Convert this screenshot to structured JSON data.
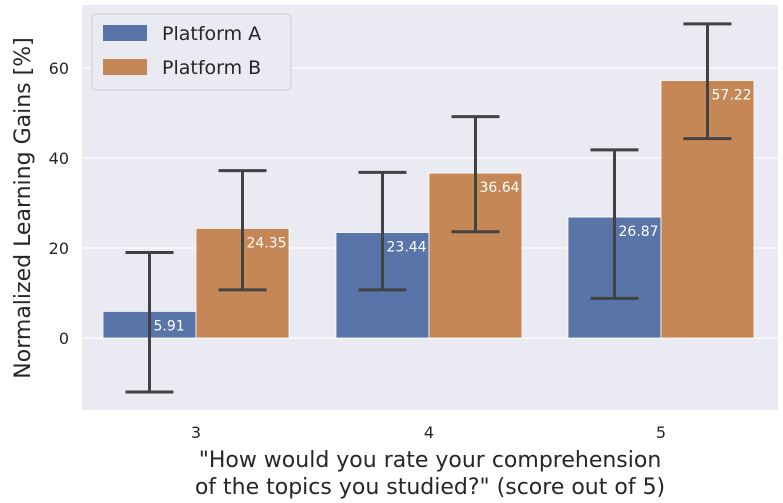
{
  "chart_data": {
    "type": "bar",
    "title": "",
    "ylabel": "Normalized Learning Gains [%]",
    "xlabel_lines": [
      "\"How would you rate your comprehension",
      "of the topics you studied?\" (score out of 5)"
    ],
    "categories": [
      "3",
      "4",
      "5"
    ],
    "ylim": [
      -16,
      74
    ],
    "yticks": [
      0,
      20,
      40,
      60
    ],
    "grid": true,
    "legend_position": "top-left",
    "series": [
      {
        "name": "Platform A",
        "color": "#5874a8",
        "values": [
          5.91,
          23.44,
          26.87
        ],
        "value_labels": [
          "5.91",
          "23.44",
          "26.87"
        ],
        "error_low": [
          -12,
          10.7,
          8.8
        ],
        "error_high": [
          19,
          36.8,
          41.8
        ]
      },
      {
        "name": "Platform B",
        "color": "#c58755",
        "values": [
          24.35,
          36.64,
          57.22
        ],
        "value_labels": [
          "24.35",
          "36.64",
          "57.22"
        ],
        "error_low": [
          10.7,
          23.6,
          44.3
        ],
        "error_high": [
          37.2,
          49.2,
          69.8
        ]
      }
    ]
  }
}
